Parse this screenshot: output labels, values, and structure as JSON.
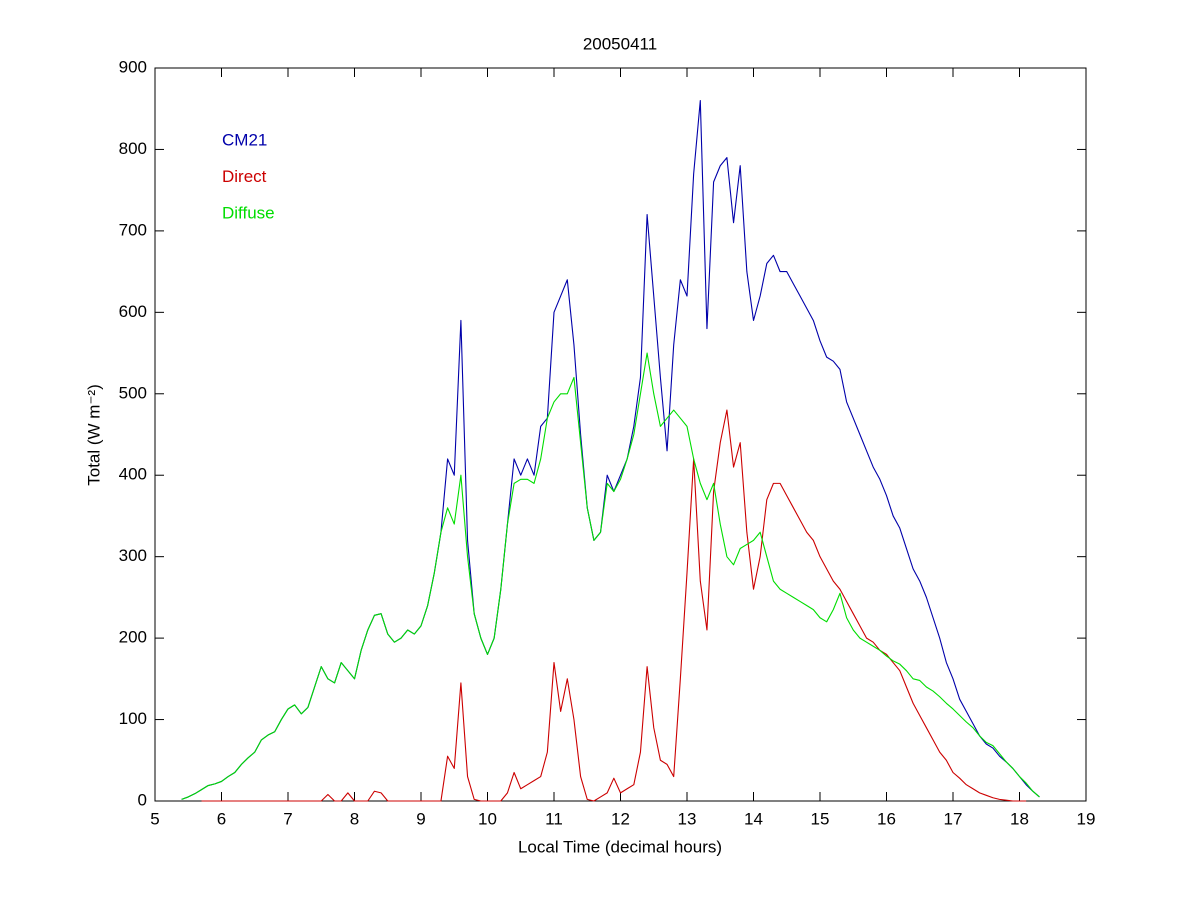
{
  "chart_data": {
    "type": "line",
    "title": "20050411",
    "xlabel": "Local Time (decimal hours)",
    "ylabel": "Total (W m⁻²)",
    "x": [
      5.4,
      5.5,
      5.6,
      5.7,
      5.8,
      5.9,
      6.0,
      6.1,
      6.2,
      6.3,
      6.4,
      6.5,
      6.6,
      6.7,
      6.8,
      6.9,
      7.0,
      7.1,
      7.2,
      7.3,
      7.4,
      7.5,
      7.6,
      7.7,
      7.8,
      7.9,
      8.0,
      8.1,
      8.2,
      8.3,
      8.4,
      8.5,
      8.6,
      8.7,
      8.8,
      8.9,
      9.0,
      9.1,
      9.2,
      9.3,
      9.4,
      9.5,
      9.6,
      9.7,
      9.8,
      9.9,
      10.0,
      10.1,
      10.2,
      10.3,
      10.4,
      10.5,
      10.6,
      10.7,
      10.8,
      10.9,
      11.0,
      11.1,
      11.2,
      11.3,
      11.4,
      11.5,
      11.6,
      11.7,
      11.8,
      11.9,
      12.0,
      12.1,
      12.2,
      12.3,
      12.4,
      12.5,
      12.6,
      12.7,
      12.8,
      12.9,
      13.0,
      13.1,
      13.2,
      13.3,
      13.4,
      13.5,
      13.6,
      13.7,
      13.8,
      13.9,
      14.0,
      14.1,
      14.2,
      14.3,
      14.4,
      14.5,
      14.6,
      14.7,
      14.8,
      14.9,
      15.0,
      15.1,
      15.2,
      15.3,
      15.4,
      15.5,
      15.6,
      15.7,
      15.8,
      15.9,
      16.0,
      16.1,
      16.2,
      16.3,
      16.4,
      16.5,
      16.6,
      16.7,
      16.8,
      16.9,
      17.0,
      17.1,
      17.2,
      17.3,
      17.4,
      17.5,
      17.6,
      17.7,
      17.8,
      17.9,
      18.0,
      18.1,
      18.2,
      18.3
    ],
    "series": [
      {
        "name": "CM21",
        "color": "#0000aa",
        "values": [
          2,
          5,
          9,
          14,
          19,
          21,
          24,
          30,
          35,
          45,
          53,
          60,
          75,
          81,
          85,
          100,
          113,
          118,
          107,
          115,
          140,
          165,
          150,
          145,
          170,
          160,
          150,
          185,
          210,
          228,
          230,
          205,
          195,
          200,
          210,
          205,
          215,
          240,
          280,
          330,
          420,
          400,
          590,
          320,
          230,
          200,
          180,
          200,
          260,
          340,
          420,
          400,
          420,
          400,
          460,
          470,
          600,
          620,
          640,
          560,
          450,
          360,
          320,
          330,
          400,
          380,
          400,
          420,
          460,
          520,
          720,
          620,
          520,
          430,
          560,
          640,
          620,
          770,
          860,
          580,
          760,
          780,
          790,
          710,
          780,
          650,
          590,
          620,
          660,
          670,
          650,
          650,
          635,
          620,
          605,
          590,
          565,
          545,
          540,
          530,
          490,
          470,
          450,
          430,
          410,
          395,
          375,
          350,
          335,
          310,
          285,
          270,
          250,
          225,
          200,
          170,
          150,
          125,
          110,
          95,
          80,
          70,
          65,
          55,
          48,
          40,
          30,
          20,
          12,
          5
        ]
      },
      {
        "name": "Direct",
        "color": "#cc0000",
        "values": [
          null,
          null,
          null,
          0,
          0,
          0,
          0,
          0,
          0,
          0,
          0,
          0,
          0,
          0,
          0,
          0,
          0,
          0,
          0,
          0,
          0,
          0,
          8,
          0,
          0,
          10,
          0,
          0,
          0,
          12,
          10,
          0,
          0,
          0,
          0,
          0,
          0,
          0,
          0,
          0,
          55,
          40,
          145,
          30,
          2,
          0,
          0,
          0,
          0,
          10,
          35,
          15,
          20,
          25,
          30,
          60,
          170,
          110,
          150,
          100,
          30,
          2,
          0,
          5,
          10,
          28,
          10,
          15,
          20,
          60,
          165,
          90,
          50,
          45,
          30,
          150,
          280,
          420,
          270,
          210,
          380,
          440,
          480,
          410,
          440,
          330,
          260,
          300,
          370,
          390,
          390,
          375,
          360,
          345,
          330,
          320,
          300,
          285,
          270,
          260,
          245,
          230,
          215,
          200,
          195,
          185,
          180,
          170,
          160,
          140,
          120,
          105,
          90,
          75,
          60,
          50,
          35,
          28,
          20,
          15,
          10,
          7,
          4,
          2,
          1,
          0,
          0,
          0,
          null,
          null
        ]
      },
      {
        "name": "Diffuse",
        "color": "#00dd00",
        "values": [
          2,
          5,
          9,
          14,
          19,
          21,
          24,
          30,
          35,
          45,
          53,
          60,
          75,
          81,
          85,
          100,
          113,
          118,
          107,
          115,
          140,
          165,
          150,
          145,
          170,
          160,
          150,
          185,
          210,
          228,
          230,
          205,
          195,
          200,
          210,
          205,
          215,
          240,
          280,
          330,
          360,
          340,
          400,
          300,
          230,
          200,
          180,
          200,
          260,
          340,
          390,
          395,
          395,
          390,
          420,
          470,
          490,
          500,
          500,
          520,
          440,
          360,
          320,
          330,
          390,
          380,
          395,
          420,
          450,
          500,
          550,
          500,
          460,
          470,
          480,
          470,
          460,
          420,
          390,
          370,
          390,
          340,
          300,
          290,
          310,
          315,
          320,
          330,
          300,
          270,
          260,
          255,
          250,
          245,
          240,
          235,
          225,
          220,
          235,
          255,
          225,
          210,
          200,
          195,
          190,
          185,
          178,
          172,
          168,
          160,
          150,
          148,
          140,
          135,
          128,
          120,
          113,
          105,
          97,
          90,
          80,
          72,
          68,
          58,
          48,
          40,
          30,
          22,
          12,
          5
        ]
      }
    ],
    "xlim": [
      5,
      19
    ],
    "xticks": [
      5,
      6,
      7,
      8,
      9,
      10,
      11,
      12,
      13,
      14,
      15,
      16,
      17,
      18,
      19
    ],
    "ylim": [
      0,
      900
    ],
    "yticks": [
      0,
      100,
      200,
      300,
      400,
      500,
      600,
      700,
      800,
      900
    ],
    "grid": false,
    "legend": "upper left"
  }
}
